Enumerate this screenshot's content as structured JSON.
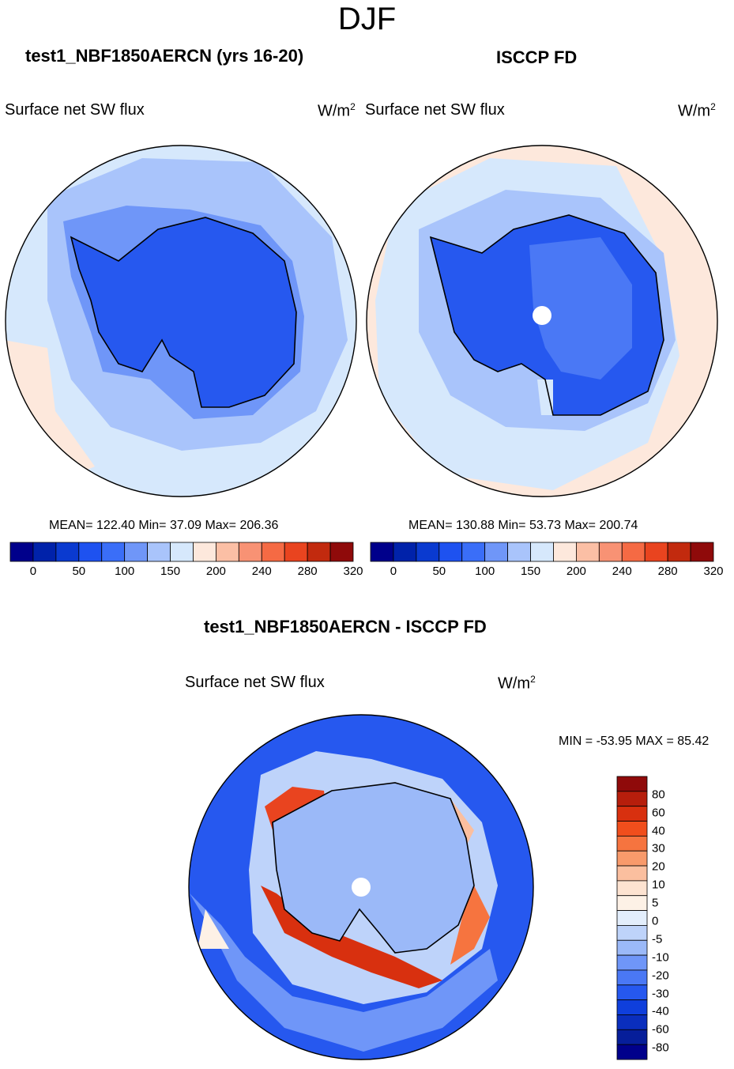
{
  "figure": {
    "title": "DJF"
  },
  "panels": [
    {
      "id": "model",
      "title": "test1_NBF1850AERCN (yrs 16-20)",
      "variable": "Surface net SW flux",
      "units_base": "W/m",
      "units_exp": "2",
      "stats": "MEAN= 122.40  Min=  37.09  Max= 206.36",
      "colorbar": {
        "colors": [
          "#00008b",
          "#0022aa",
          "#0a3ad0",
          "#1e52f0",
          "#3a6ef8",
          "#6f96f8",
          "#a9c4fb",
          "#d6e8fc",
          "#fde8dc",
          "#fbbfa5",
          "#f89274",
          "#f56a44",
          "#e9441f",
          "#c22a0e",
          "#8f0a0a"
        ],
        "ticks": [
          "0",
          "50",
          "100",
          "150",
          "200",
          "240",
          "280",
          "320"
        ]
      }
    },
    {
      "id": "obs",
      "title": "ISCCP FD",
      "variable": "Surface net SW flux",
      "units_base": "W/m",
      "units_exp": "2",
      "stats": "MEAN= 130.88  Min=  53.73  Max= 200.74",
      "colorbar": {
        "colors": [
          "#00008b",
          "#0022aa",
          "#0a3ad0",
          "#1e52f0",
          "#3a6ef8",
          "#6f96f8",
          "#a9c4fb",
          "#d6e8fc",
          "#fde8dc",
          "#fbbfa5",
          "#f89274",
          "#f56a44",
          "#e9441f",
          "#c22a0e",
          "#8f0a0a"
        ],
        "ticks": [
          "0",
          "50",
          "100",
          "150",
          "200",
          "240",
          "280",
          "320"
        ]
      }
    },
    {
      "id": "diff",
      "title": "test1_NBF1850AERCN - ISCCP FD",
      "variable": "Surface net SW flux",
      "units_base": "W/m",
      "units_exp": "2",
      "stats": "MIN = -53.95 MAX =  85.42",
      "colorbar": {
        "colors_top_to_bottom": [
          "#8f0a0a",
          "#b61e0c",
          "#d8300f",
          "#f04e1c",
          "#f6743f",
          "#f89a6b",
          "#fbbf9f",
          "#fde3d1",
          "#fdf1e6",
          "#e3eefc",
          "#bed3fa",
          "#9bb9f8",
          "#6f96f8",
          "#4a78f5",
          "#2658ef",
          "#0f3fdc",
          "#0a2ebd",
          "#061e9a",
          "#00008b"
        ],
        "ticks_top_to_bottom": [
          "80",
          "60",
          "40",
          "30",
          "20",
          "10",
          "5",
          "0",
          "-5",
          "-10",
          "-20",
          "-30",
          "-40",
          "-60",
          "-80"
        ]
      }
    }
  ]
}
